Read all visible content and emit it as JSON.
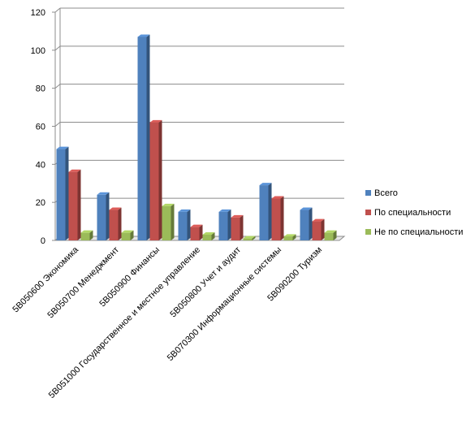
{
  "chart_data": {
    "type": "bar",
    "title": "",
    "xlabel": "",
    "ylabel": "",
    "ylim": [
      0,
      120
    ],
    "ytick_labels": [
      "0",
      "20",
      "40",
      "60",
      "80",
      "100",
      "120"
    ],
    "grid": true,
    "legend_position": "right",
    "categories": [
      "5В050600 Экономика",
      "5В050700 Менеджмент",
      "5В050900 Финансы",
      "5В051000 Государственное и местное управление",
      "5В050800 Учет и аудит",
      "5В070300 Информационные системы",
      "5В090200 Туризм"
    ],
    "series": [
      {
        "name": "Всего",
        "color": "#4F81BD",
        "values": [
          48,
          24,
          107,
          15,
          15,
          29,
          16
        ]
      },
      {
        "name": "По специальности",
        "color": "#C0504D",
        "values": [
          36,
          16,
          62,
          7,
          12,
          22,
          10
        ]
      },
      {
        "name": "Не по специальности",
        "color": "#9BBB59",
        "values": [
          4,
          4,
          18,
          3,
          1,
          2,
          4
        ]
      }
    ]
  }
}
